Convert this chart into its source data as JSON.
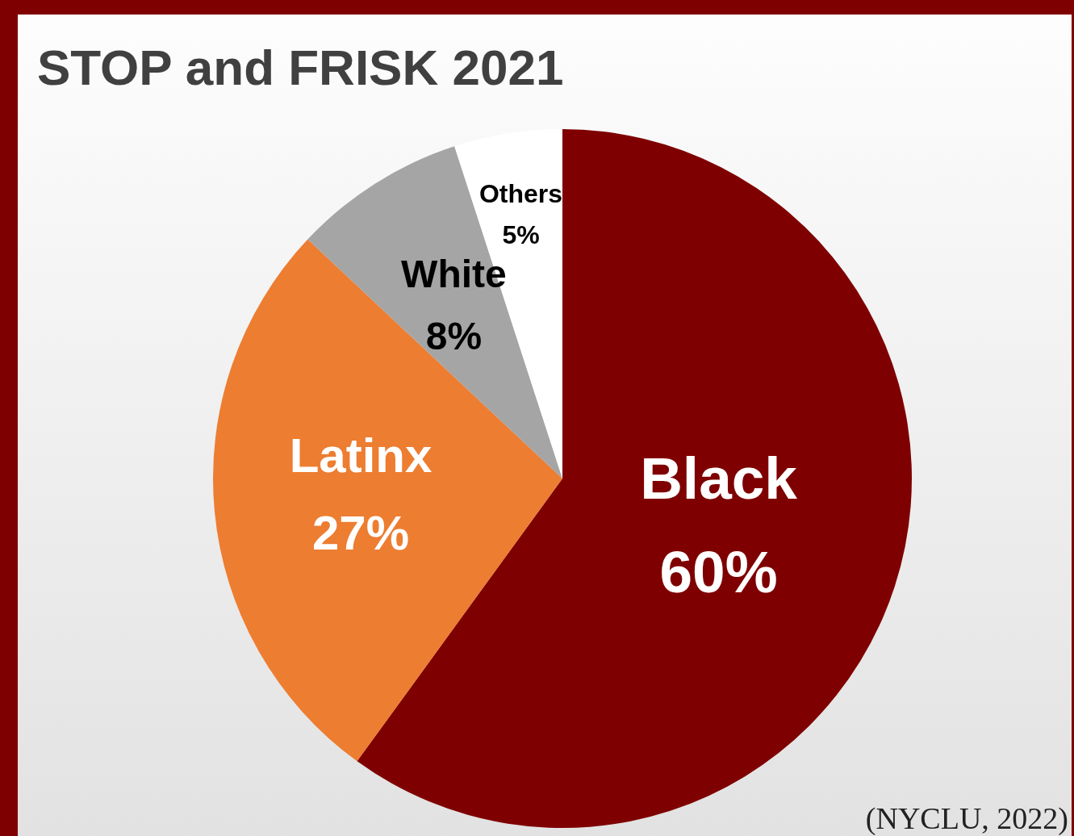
{
  "chart_data": {
    "type": "pie",
    "title": "STOP and FRISK 2021",
    "categories": [
      "Black",
      "Latinx",
      "White",
      "Others"
    ],
    "values": [
      60,
      27,
      8,
      5
    ],
    "value_labels": [
      "60%",
      "27%",
      "8%",
      "5%"
    ],
    "colors": [
      "#7f0000",
      "#ed7d31",
      "#a5a5a5",
      "#ffffff"
    ],
    "legend": false,
    "annotations": [
      "(NYCLU, 2022)"
    ]
  }
}
